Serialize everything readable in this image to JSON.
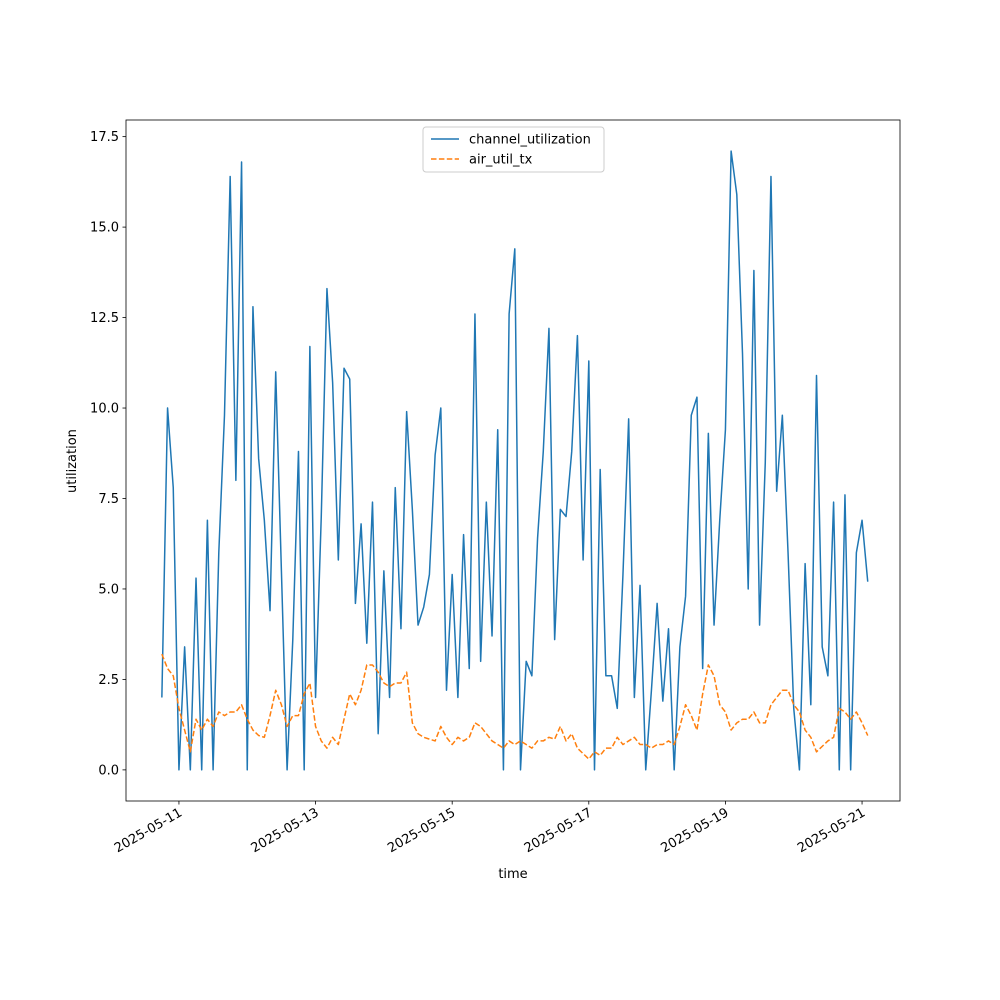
{
  "chart_data": {
    "type": "line",
    "x_label": "time",
    "y_label": "utilization",
    "x": [
      "2025-05-10T18:00",
      "2025-05-10T20:00",
      "2025-05-10T22:00",
      "2025-05-11T00:00",
      "2025-05-11T02:00",
      "2025-05-11T04:00",
      "2025-05-11T06:00",
      "2025-05-11T08:00",
      "2025-05-11T10:00",
      "2025-05-11T12:00",
      "2025-05-11T14:00",
      "2025-05-11T16:00",
      "2025-05-11T18:00",
      "2025-05-11T20:00",
      "2025-05-11T22:00",
      "2025-05-12T00:00",
      "2025-05-12T02:00",
      "2025-05-12T04:00",
      "2025-05-12T06:00",
      "2025-05-12T08:00",
      "2025-05-12T10:00",
      "2025-05-12T12:00",
      "2025-05-12T14:00",
      "2025-05-12T16:00",
      "2025-05-12T18:00",
      "2025-05-12T20:00",
      "2025-05-12T22:00",
      "2025-05-13T00:00",
      "2025-05-13T02:00",
      "2025-05-13T04:00",
      "2025-05-13T06:00",
      "2025-05-13T08:00",
      "2025-05-13T10:00",
      "2025-05-13T12:00",
      "2025-05-13T14:00",
      "2025-05-13T16:00",
      "2025-05-13T18:00",
      "2025-05-13T20:00",
      "2025-05-13T22:00",
      "2025-05-14T00:00",
      "2025-05-14T02:00",
      "2025-05-14T04:00",
      "2025-05-14T06:00",
      "2025-05-14T08:00",
      "2025-05-14T10:00",
      "2025-05-14T12:00",
      "2025-05-14T14:00",
      "2025-05-14T16:00",
      "2025-05-14T18:00",
      "2025-05-14T20:00",
      "2025-05-14T22:00",
      "2025-05-15T00:00",
      "2025-05-15T02:00",
      "2025-05-15T04:00",
      "2025-05-15T06:00",
      "2025-05-15T08:00",
      "2025-05-15T10:00",
      "2025-05-15T12:00",
      "2025-05-15T14:00",
      "2025-05-15T16:00",
      "2025-05-15T18:00",
      "2025-05-15T20:00",
      "2025-05-15T22:00",
      "2025-05-16T00:00",
      "2025-05-16T02:00",
      "2025-05-16T04:00",
      "2025-05-16T06:00",
      "2025-05-16T08:00",
      "2025-05-16T10:00",
      "2025-05-16T12:00",
      "2025-05-16T14:00",
      "2025-05-16T16:00",
      "2025-05-16T18:00",
      "2025-05-16T20:00",
      "2025-05-16T22:00",
      "2025-05-17T00:00",
      "2025-05-17T02:00",
      "2025-05-17T04:00",
      "2025-05-17T06:00",
      "2025-05-17T08:00",
      "2025-05-17T10:00",
      "2025-05-17T12:00",
      "2025-05-17T14:00",
      "2025-05-17T16:00",
      "2025-05-17T18:00",
      "2025-05-17T20:00",
      "2025-05-17T22:00",
      "2025-05-18T00:00",
      "2025-05-18T02:00",
      "2025-05-18T04:00",
      "2025-05-18T06:00",
      "2025-05-18T08:00",
      "2025-05-18T10:00",
      "2025-05-18T12:00",
      "2025-05-18T14:00",
      "2025-05-18T16:00",
      "2025-05-18T18:00",
      "2025-05-18T20:00",
      "2025-05-18T22:00",
      "2025-05-19T00:00",
      "2025-05-19T02:00",
      "2025-05-19T04:00",
      "2025-05-19T06:00",
      "2025-05-19T08:00",
      "2025-05-19T10:00",
      "2025-05-19T12:00",
      "2025-05-19T14:00",
      "2025-05-19T16:00",
      "2025-05-19T18:00",
      "2025-05-19T20:00",
      "2025-05-19T22:00",
      "2025-05-20T00:00",
      "2025-05-20T02:00",
      "2025-05-20T04:00",
      "2025-05-20T06:00",
      "2025-05-20T08:00",
      "2025-05-20T10:00",
      "2025-05-20T12:00",
      "2025-05-20T14:00",
      "2025-05-20T16:00",
      "2025-05-20T18:00",
      "2025-05-20T20:00",
      "2025-05-20T22:00",
      "2025-05-21T00:00",
      "2025-05-21T02:00"
    ],
    "series": [
      {
        "name": "channel_utilization",
        "color": "#1f77b4",
        "dash": "solid",
        "values": [
          2,
          10,
          7.8,
          0,
          3.4,
          0,
          5.3,
          0,
          6.9,
          0,
          6,
          9.8,
          16.4,
          8,
          16.8,
          0,
          12.8,
          8.6,
          6.9,
          4.4,
          11,
          5.5,
          0,
          3.6,
          8.8,
          0,
          11.7,
          2,
          7,
          13.3,
          10.7,
          5.8,
          11.1,
          10.8,
          4.6,
          6.8,
          3.5,
          7.4,
          1,
          5.5,
          2,
          7.8,
          3.9,
          9.9,
          7.2,
          4,
          4.5,
          5.4,
          8.7,
          10,
          2.2,
          5.4,
          2,
          6.5,
          2.8,
          12.6,
          3,
          7.4,
          3.7,
          9.4,
          0,
          12.6,
          14.4,
          0,
          3,
          2.6,
          6.4,
          8.8,
          12.2,
          3.6,
          7.2,
          7,
          8.8,
          12,
          5.8,
          11.3,
          0,
          8.3,
          2.6,
          2.6,
          1.7,
          5.4,
          9.7,
          2,
          5.1,
          0,
          2.2,
          4.6,
          1.9,
          3.9,
          0,
          3.4,
          4.8,
          9.8,
          10.3,
          2.8,
          9.3,
          4,
          6.9,
          9.4,
          17.1,
          15.9,
          11.5,
          5,
          13.8,
          4,
          8.5,
          16.4,
          7.7,
          9.8,
          6,
          1.7,
          0,
          5.7,
          1.8,
          10.9,
          3.4,
          2.6,
          7.4,
          0,
          7.6,
          0,
          6,
          6.9,
          5.2
        ]
      },
      {
        "name": "air_util_tx",
        "color": "#ff7f0e",
        "dash": "dashed",
        "values": [
          3.2,
          2.8,
          2.6,
          1.7,
          1.1,
          0.5,
          1.4,
          1.1,
          1.4,
          1.2,
          1.6,
          1.5,
          1.6,
          1.6,
          1.8,
          1.4,
          1.1,
          0.95,
          0.9,
          1.5,
          2.2,
          1.8,
          1.2,
          1.5,
          1.5,
          2.1,
          2.4,
          1.2,
          0.8,
          0.6,
          0.9,
          0.7,
          1.4,
          2.1,
          1.8,
          2.2,
          2.9,
          2.9,
          2.7,
          2.4,
          2.3,
          2.4,
          2.4,
          2.7,
          1.3,
          1,
          0.9,
          0.85,
          0.8,
          1.2,
          0.9,
          0.7,
          0.9,
          0.8,
          0.9,
          1.3,
          1.2,
          1,
          0.8,
          0.7,
          0.6,
          0.8,
          0.7,
          0.8,
          0.7,
          0.6,
          0.8,
          0.8,
          0.9,
          0.85,
          1.2,
          0.8,
          1,
          0.6,
          0.45,
          0.3,
          0.5,
          0.4,
          0.6,
          0.6,
          0.9,
          0.7,
          0.8,
          0.9,
          0.7,
          0.7,
          0.6,
          0.7,
          0.7,
          0.8,
          0.7,
          1.2,
          1.8,
          1.5,
          1.1,
          2.1,
          2.9,
          2.6,
          1.8,
          1.6,
          1.1,
          1.3,
          1.4,
          1.4,
          1.6,
          1.3,
          1.3,
          1.8,
          2,
          2.2,
          2.2,
          1.8,
          1.6,
          1.1,
          0.9,
          0.5,
          0.65,
          0.8,
          0.9,
          1.7,
          1.6,
          1.4,
          1.6,
          1.3,
          0.95
        ]
      }
    ],
    "xlim": [
      "2025-05-10T05:24",
      "2025-05-21T13:20"
    ],
    "xticks": [
      {
        "value": "2025-05-11T00:00",
        "label": "2025-05-11"
      },
      {
        "value": "2025-05-13T00:00",
        "label": "2025-05-13"
      },
      {
        "value": "2025-05-15T00:00",
        "label": "2025-05-15"
      },
      {
        "value": "2025-05-17T00:00",
        "label": "2025-05-17"
      },
      {
        "value": "2025-05-19T00:00",
        "label": "2025-05-19"
      },
      {
        "value": "2025-05-21T00:00",
        "label": "2025-05-21"
      }
    ],
    "ylim": [
      -0.86,
      17.96
    ],
    "yticks": [
      {
        "value": 0,
        "label": "0.0"
      },
      {
        "value": 2.5,
        "label": "2.5"
      },
      {
        "value": 5,
        "label": "5.0"
      },
      {
        "value": 7.5,
        "label": "7.5"
      },
      {
        "value": 10,
        "label": "10.0"
      },
      {
        "value": 12.5,
        "label": "12.5"
      },
      {
        "value": 15,
        "label": "15.0"
      },
      {
        "value": 17.5,
        "label": "17.5"
      }
    ],
    "legend": "upper center",
    "grid": false
  }
}
